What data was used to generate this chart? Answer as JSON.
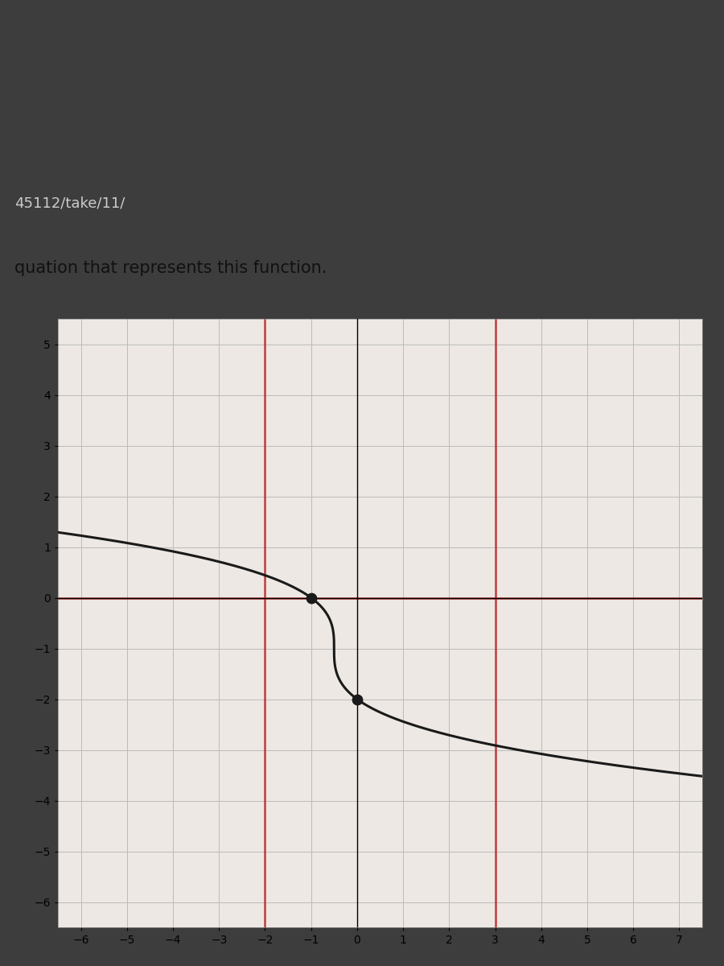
{
  "header_text": "45112/take/11/",
  "subtitle": "quation that represents this function.",
  "xlim": [
    -6.5,
    7.5
  ],
  "ylim": [
    -6.5,
    5.5
  ],
  "xticks": [
    -6,
    -5,
    -4,
    -3,
    -2,
    -1,
    0,
    1,
    2,
    3,
    4,
    5,
    6,
    7
  ],
  "yticks": [
    -6,
    -5,
    -4,
    -3,
    -2,
    -1,
    0,
    1,
    2,
    3,
    4,
    5
  ],
  "red_vlines": [
    -2,
    3
  ],
  "red_hlines": [
    0
  ],
  "dot_points": [
    [
      -1,
      0
    ],
    [
      0,
      -2
    ]
  ],
  "curve_color": "#1a1a1a",
  "grid_color": "#bbbbbb",
  "red_line_color": "#bb2222",
  "background_header": "#3d3d3d",
  "background_url": "#2a2a2a",
  "background_subtitle": "#e8e4e0",
  "background_plot": "#ede8e3",
  "dot_color": "#1a1a1a",
  "dot_size": 80,
  "curve_linewidth": 2.2,
  "red_linewidth": 1.8,
  "axis_linewidth": 1.0,
  "function_scale": 2.5
}
